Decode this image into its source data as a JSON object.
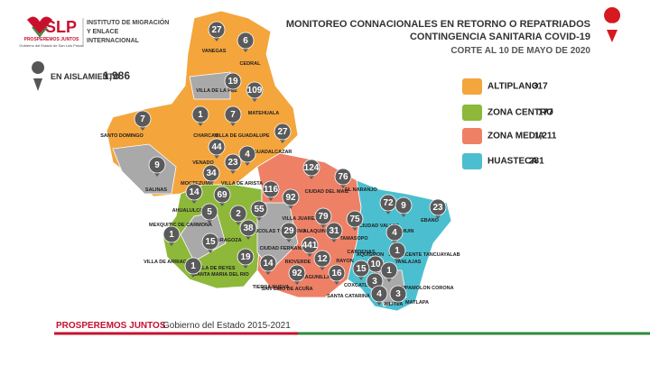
{
  "header": {
    "logo": "SLP",
    "slogan": "PROSPEREMOS JUNTOS",
    "government": "Gobierno del Estado de San Luis Potosí",
    "institute": [
      "INSTITUTO DE MIGRACIÓN",
      "Y ENLACE",
      "INTERNACIONAL"
    ],
    "title": [
      "MONITOREO CONNACIONALES EN RETORNO O REPATRIADOS",
      "CONTINGENCIA SANITARIA COVID-19"
    ],
    "date": "CORTE AL 10 DE MAYO DE 2020"
  },
  "isolation": {
    "label": "EN AISLAMIENTO",
    "value": "1,986"
  },
  "legend": [
    {
      "name": "ALTIPLANO",
      "value": "317"
    },
    {
      "name": "ZONA CENTRO",
      "value": "177"
    },
    {
      "name": "ZONA MEDIA",
      "value": "1,211"
    },
    {
      "name": "HUASTECA",
      "value": "281"
    }
  ],
  "pins": [
    "27",
    "6",
    "19",
    "109",
    "7",
    "1",
    "7",
    "27",
    "44",
    "4",
    "23",
    "9",
    "34",
    "124",
    "76",
    "14",
    "69",
    "116",
    "92",
    "5",
    "2",
    "55",
    "79",
    "72",
    "9",
    "23",
    "75",
    "1",
    "15",
    "38",
    "29",
    "31",
    "4",
    "441",
    "12",
    "1",
    "10",
    "19",
    "14",
    "1",
    "92",
    "16",
    "15",
    "1",
    "3",
    "4",
    "3"
  ],
  "places": [
    "VANEGAS",
    "CEDRAL",
    "VILLA DE LA PAZ",
    "MATEHUALA",
    "SANTO DOMINGO",
    "CHARCAS",
    "VILLA DE GUADALUPE",
    "GUADALCAZAR",
    "VENADO",
    "SALINAS",
    "MOCTEZUMA",
    "VILLA DE ARISTA",
    "EL NARANJO",
    "AHUALULCO",
    "CIUDAD DEL MAIZ",
    "MEXQUITIC DE CARMONA",
    "SAN NICOLAS TOLENTINO",
    "VILLA JUAREZ",
    "CIUDAD VALLES",
    "EBANO",
    "TAMUIN",
    "ZARAGOZA",
    "CIUDAD FERNANDEZ",
    "ALAQUINES",
    "SAN VICENTE TANCUAYALAB",
    "CARDENAS",
    "TAMASOPO",
    "RAYON",
    "TANLAJAS",
    "AQUISMON",
    "SANTA MARIA DEL RIO",
    "RIOVERDE",
    "VILLA DE REYES",
    "VILLA DE ARRIAGA",
    "SAN CIRO DE ACUÑA",
    "LAGUNILLAS",
    "SANTA CATARINA",
    "COXCATLAN",
    "TAMPAMOLON CORONA",
    "XILITLA",
    "MATLAPA",
    "TIERRA NUEVA"
  ],
  "footer": {
    "slogan": "PROSPEREMOS JUNTOS",
    "government": "Gobierno del Estado 2015-2021"
  }
}
